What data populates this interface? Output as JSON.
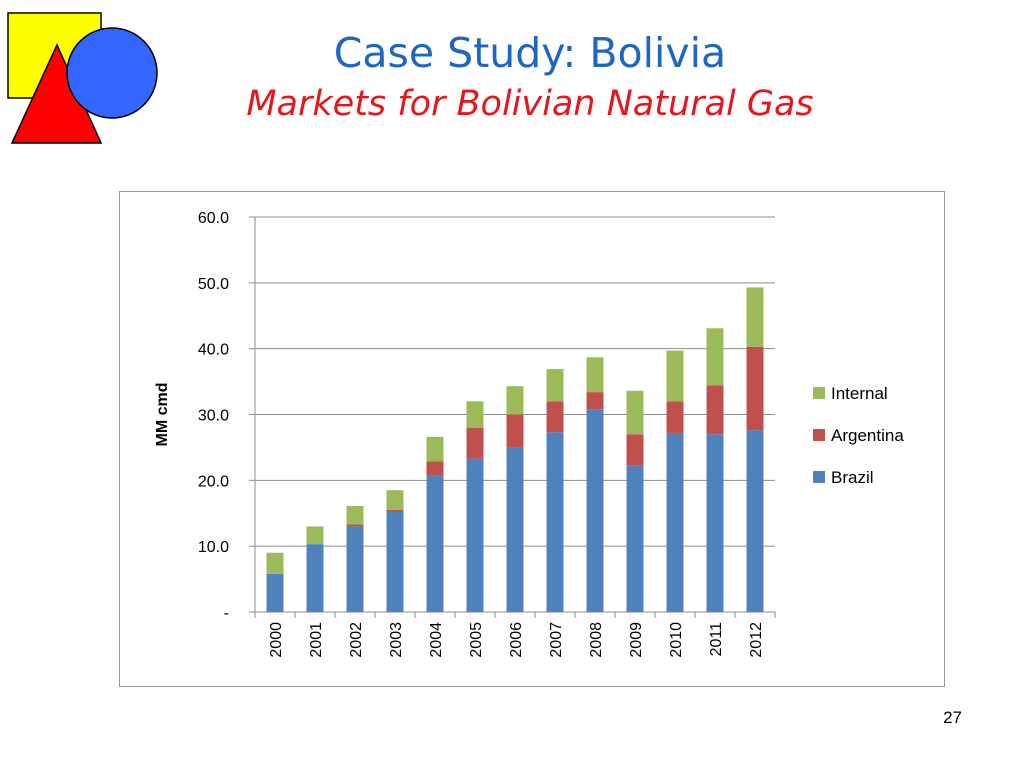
{
  "slide": {
    "title": "Case Study: Bolivia",
    "subtitle": "Markets for Bolivian Natural Gas",
    "page_number": "27",
    "colors": {
      "title": "#1f66c0",
      "subtitle": "#e8151c"
    }
  },
  "logo": {
    "shapes": [
      "yellow-square",
      "blue-circle",
      "red-triangle"
    ],
    "colors": {
      "square": "#ffff00",
      "circle": "#3366ff",
      "triangle": "#ff0000"
    }
  },
  "chart_data": {
    "type": "bar",
    "stacked": true,
    "title": "",
    "xlabel": "",
    "ylabel": "MM cmd",
    "ylim": [
      0,
      60
    ],
    "yticks": [
      "-",
      "10.0",
      "20.0",
      "30.0",
      "40.0",
      "50.0",
      "60.0"
    ],
    "categories": [
      "2000",
      "2001",
      "2002",
      "2003",
      "2004",
      "2005",
      "2006",
      "2007",
      "2008",
      "2009",
      "2010",
      "2011",
      "2012"
    ],
    "series": [
      {
        "name": "Brazil",
        "color": "#4f81bd",
        "values": [
          5.8,
          10.3,
          13.0,
          15.2,
          20.8,
          23.3,
          25.0,
          27.3,
          30.8,
          22.3,
          27.2,
          27.0,
          27.6
        ]
      },
      {
        "name": "Argentina",
        "color": "#c0504d",
        "values": [
          0.0,
          0.0,
          0.3,
          0.3,
          2.1,
          4.7,
          5.0,
          4.7,
          2.6,
          4.7,
          4.8,
          7.4,
          12.7
        ]
      },
      {
        "name": "Internal",
        "color": "#9bbb59",
        "values": [
          3.2,
          2.7,
          2.8,
          3.0,
          3.7,
          4.0,
          4.3,
          4.9,
          5.3,
          6.6,
          7.7,
          8.7,
          9.0
        ]
      }
    ],
    "legend": {
      "position": "right",
      "order": [
        "Internal",
        "Argentina",
        "Brazil"
      ]
    },
    "grid": true
  }
}
